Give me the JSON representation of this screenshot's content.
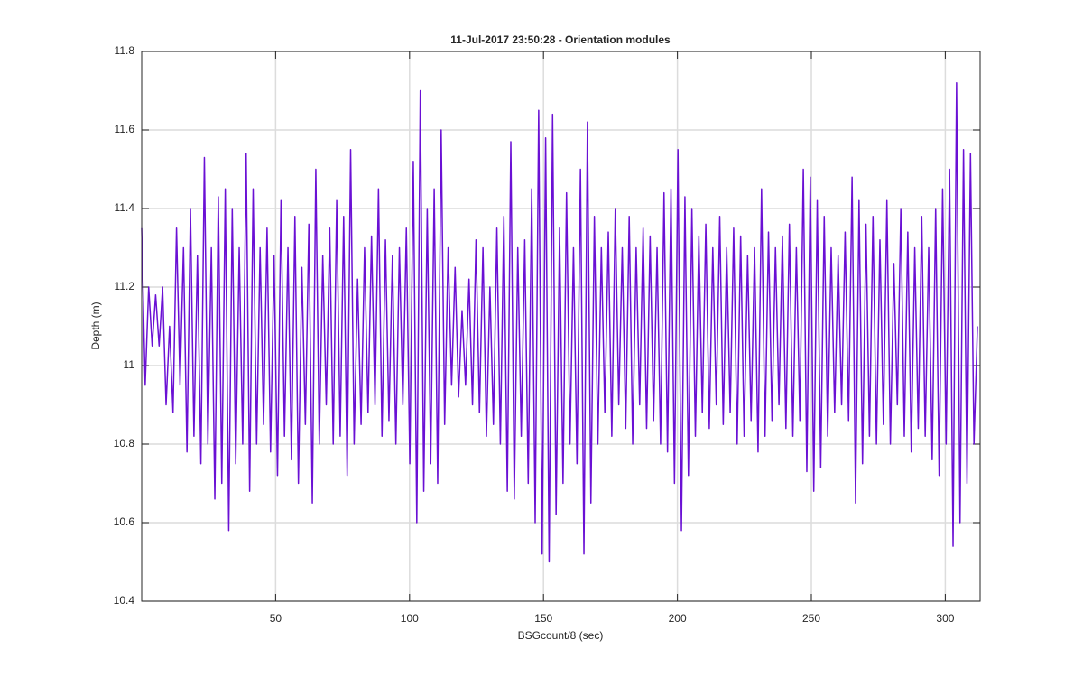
{
  "chart_data": {
    "type": "line",
    "title": "11-Jul-2017 23:50:28 - Orientation modules",
    "x_label": "BSGcount/8 (sec)",
    "y_label": "Depth (m)",
    "xlim": [
      0,
      313
    ],
    "ylim": [
      10.4,
      11.8
    ],
    "xticks": [
      50,
      100,
      150,
      200,
      250,
      300
    ],
    "yticks": [
      10.4,
      10.6,
      10.8,
      11,
      11.2,
      11.4,
      11.6,
      11.8
    ],
    "grid": true,
    "color": "#6a10d4",
    "x": [
      0,
      1.3,
      2.6,
      3.9,
      5.2,
      6.5,
      7.8,
      9.1,
      10.4,
      11.7,
      13,
      14.3,
      15.6,
      16.9,
      18.2,
      19.5,
      20.8,
      22.1,
      23.4,
      24.7,
      26,
      27.3,
      28.6,
      29.9,
      31.2,
      32.5,
      33.8,
      35.1,
      36.4,
      37.7,
      39,
      40.3,
      41.6,
      42.9,
      44.2,
      45.5,
      46.8,
      48.1,
      49.4,
      50.7,
      52,
      53.3,
      54.6,
      55.9,
      57.2,
      58.5,
      59.8,
      61.1,
      62.4,
      63.7,
      65,
      66.3,
      67.6,
      68.9,
      70.2,
      71.5,
      72.8,
      74.1,
      75.4,
      76.7,
      78,
      79.3,
      80.6,
      81.9,
      83.2,
      84.5,
      85.8,
      87.1,
      88.4,
      89.7,
      91,
      92.3,
      93.6,
      94.9,
      96.2,
      97.5,
      98.8,
      100.1,
      101.4,
      102.7,
      104,
      105.3,
      106.6,
      107.9,
      109.2,
      110.5,
      111.8,
      113.1,
      114.4,
      115.7,
      117,
      118.3,
      119.6,
      120.9,
      122.2,
      123.5,
      124.8,
      126.1,
      127.4,
      128.7,
      130,
      131.3,
      132.6,
      133.9,
      135.2,
      136.5,
      137.8,
      139.1,
      140.4,
      141.7,
      143,
      144.3,
      145.6,
      146.9,
      148.2,
      149.5,
      150.8,
      152.1,
      153.4,
      154.7,
      156,
      157.3,
      158.6,
      159.9,
      161.2,
      162.5,
      163.8,
      165.1,
      166.4,
      167.7,
      169,
      170.3,
      171.6,
      172.9,
      174.2,
      175.5,
      176.8,
      178.1,
      179.4,
      180.7,
      182,
      183.3,
      184.6,
      185.9,
      187.2,
      188.5,
      189.8,
      191.1,
      192.4,
      193.7,
      195,
      196.3,
      197.6,
      198.9,
      200.2,
      201.5,
      202.8,
      204.1,
      205.4,
      206.7,
      208,
      209.3,
      210.6,
      211.9,
      213.2,
      214.5,
      215.8,
      217.1,
      218.4,
      219.7,
      221,
      222.3,
      223.6,
      224.9,
      226.2,
      227.5,
      228.8,
      230.1,
      231.4,
      232.7,
      234,
      235.3,
      236.6,
      237.9,
      239.2,
      240.5,
      241.8,
      243.1,
      244.4,
      245.7,
      247,
      248.3,
      249.6,
      250.9,
      252.2,
      253.5,
      254.8,
      256.1,
      257.4,
      258.7,
      260,
      261.3,
      262.6,
      263.9,
      265.2,
      266.5,
      267.8,
      269.1,
      270.4,
      271.7,
      273,
      274.3,
      275.6,
      276.9,
      278.2,
      279.5,
      280.8,
      282.1,
      283.4,
      284.7,
      286,
      287.3,
      288.6,
      289.9,
      291.2,
      292.5,
      293.8,
      295.1,
      296.4,
      297.7,
      299,
      300.3,
      301.6,
      302.9,
      304.2,
      305.5,
      306.8,
      308.1,
      309.4,
      310.7,
      312
    ],
    "values": [
      11.35,
      10.95,
      11.2,
      11.05,
      11.18,
      11.05,
      11.2,
      10.9,
      11.1,
      10.88,
      11.35,
      10.95,
      11.3,
      10.78,
      11.4,
      10.82,
      11.28,
      10.75,
      11.53,
      10.8,
      11.3,
      10.66,
      11.43,
      10.7,
      11.45,
      10.58,
      11.4,
      10.75,
      11.3,
      10.8,
      11.54,
      10.68,
      11.45,
      10.8,
      11.3,
      10.85,
      11.35,
      10.78,
      11.28,
      10.72,
      11.42,
      10.82,
      11.3,
      10.76,
      11.38,
      10.7,
      11.25,
      10.85,
      11.36,
      10.65,
      11.5,
      10.8,
      11.28,
      10.9,
      11.35,
      10.8,
      11.42,
      10.82,
      11.38,
      10.72,
      11.55,
      10.8,
      11.22,
      10.85,
      11.3,
      10.88,
      11.33,
      10.9,
      11.45,
      10.82,
      11.32,
      10.86,
      11.28,
      10.8,
      11.3,
      10.9,
      11.35,
      10.75,
      11.52,
      10.6,
      11.7,
      10.68,
      11.4,
      10.75,
      11.45,
      10.7,
      11.6,
      10.85,
      11.3,
      10.95,
      11.25,
      10.92,
      11.14,
      10.95,
      11.22,
      10.9,
      11.32,
      10.88,
      11.3,
      10.82,
      11.2,
      10.85,
      11.35,
      10.8,
      11.38,
      10.68,
      11.57,
      10.66,
      11.3,
      10.82,
      11.32,
      10.7,
      11.45,
      10.6,
      11.65,
      10.52,
      11.58,
      10.5,
      11.64,
      10.62,
      11.35,
      10.7,
      11.44,
      10.8,
      11.3,
      10.75,
      11.5,
      10.52,
      11.62,
      10.65,
      11.38,
      10.8,
      11.3,
      10.88,
      11.34,
      10.82,
      11.4,
      10.9,
      11.3,
      10.84,
      11.38,
      10.8,
      11.3,
      10.9,
      11.35,
      10.84,
      11.33,
      10.86,
      11.3,
      10.8,
      11.44,
      10.78,
      11.45,
      10.7,
      11.55,
      10.58,
      11.43,
      10.72,
      11.4,
      10.82,
      11.33,
      10.88,
      11.36,
      10.84,
      11.3,
      10.9,
      11.38,
      10.85,
      11.3,
      10.88,
      11.35,
      10.8,
      11.33,
      10.82,
      11.28,
      10.86,
      11.3,
      10.78,
      11.45,
      10.82,
      11.34,
      10.86,
      11.3,
      10.9,
      11.33,
      10.84,
      11.36,
      10.82,
      11.3,
      10.86,
      11.5,
      10.73,
      11.48,
      10.68,
      11.42,
      10.74,
      11.38,
      10.82,
      11.3,
      10.88,
      11.28,
      10.9,
      11.34,
      10.86,
      11.48,
      10.65,
      11.42,
      10.75,
      11.36,
      10.82,
      11.38,
      10.8,
      11.32,
      10.85,
      11.42,
      10.8,
      11.26,
      10.9,
      11.4,
      10.82,
      11.34,
      10.78,
      11.3,
      10.84,
      11.38,
      10.82,
      11.3,
      10.76,
      11.4,
      10.72,
      11.45,
      10.8,
      11.5,
      10.54,
      11.72,
      10.6,
      11.55,
      10.7,
      11.54,
      10.8,
      11.1
    ]
  }
}
